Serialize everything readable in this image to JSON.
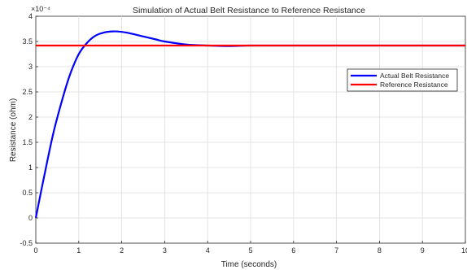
{
  "chart_data": {
    "type": "line",
    "title": "Simulation of Actual Belt Resistance to Reference Resistance",
    "xlabel": "Time (seconds)",
    "ylabel": "Resistance (ohm)",
    "y_exponent_label": "×10⁻⁴",
    "xlim": [
      0,
      10
    ],
    "ylim": [
      -0.5,
      4
    ],
    "y_scale_factor": 0.0001,
    "xticks": [
      "0",
      "1",
      "2",
      "3",
      "4",
      "5",
      "6",
      "7",
      "8",
      "9",
      "10"
    ],
    "yticks": [
      "-0.5",
      "0",
      "0.5",
      "1",
      "1.5",
      "2",
      "2.5",
      "3",
      "3.5",
      "4"
    ],
    "grid": true,
    "legend_position": "right-upper",
    "series": [
      {
        "name": "Actual Belt Resistance",
        "color": "#0000ff",
        "x": [
          0,
          0.2,
          0.4,
          0.6,
          0.8,
          1.0,
          1.2,
          1.4,
          1.6,
          1.8,
          2.0,
          2.2,
          2.5,
          2.8,
          3.0,
          3.5,
          4.0,
          4.5,
          5.0,
          6.0,
          7.0,
          8.0,
          9.0,
          10.0
        ],
        "values": [
          0,
          0.85,
          1.65,
          2.3,
          2.85,
          3.25,
          3.48,
          3.62,
          3.68,
          3.7,
          3.69,
          3.66,
          3.6,
          3.54,
          3.5,
          3.44,
          3.42,
          3.41,
          3.42,
          3.42,
          3.42,
          3.42,
          3.42,
          3.42
        ]
      },
      {
        "name": "Reference Resistance",
        "color": "#ff0000",
        "x": [
          0,
          10
        ],
        "values": [
          3.42,
          3.42
        ]
      }
    ]
  }
}
